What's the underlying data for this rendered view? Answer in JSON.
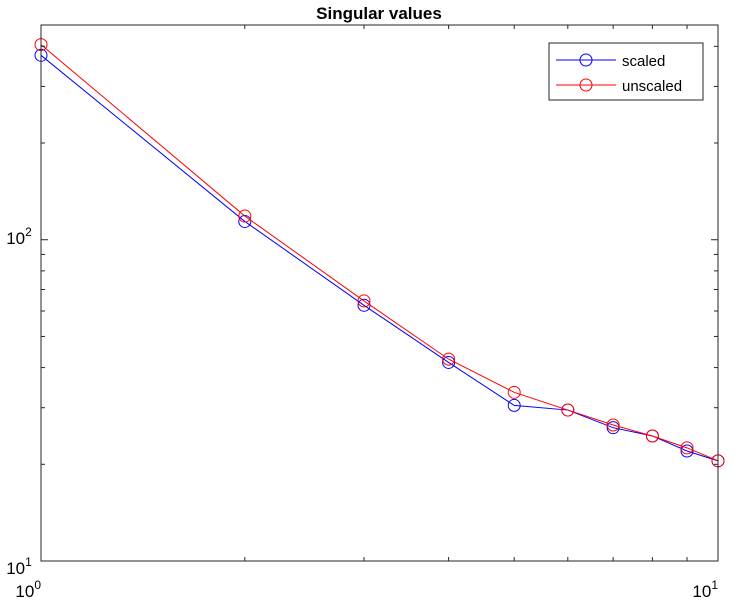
{
  "chart_data": {
    "type": "line",
    "title": "Singular values",
    "xlabel": "",
    "ylabel": "",
    "x_scale": "log",
    "y_scale": "log",
    "xlim": [
      1,
      10
    ],
    "ylim": [
      10,
      466
    ],
    "x_ticks": [
      {
        "value": 1,
        "base": "10",
        "exponent": "0"
      },
      {
        "value": 10,
        "base": "10",
        "exponent": "1"
      }
    ],
    "y_ticks": [
      {
        "value": 10,
        "base": "10",
        "exponent": "1"
      },
      {
        "value": 100,
        "base": "10",
        "exponent": "2"
      }
    ],
    "grid": false,
    "legend_position": "top-right",
    "x": [
      1,
      2,
      3,
      4,
      5,
      6,
      7,
      8,
      9,
      10
    ],
    "series": [
      {
        "name": "scaled",
        "color": "#0000ff",
        "marker": "circle",
        "values": [
          375,
          114,
          62.5,
          41.5,
          30.5,
          29.5,
          26,
          24.5,
          22,
          20.5
        ]
      },
      {
        "name": "unscaled",
        "color": "#ff0000",
        "marker": "circle",
        "values": [
          405,
          118.5,
          64.5,
          42.5,
          33.5,
          29.5,
          26.5,
          24.5,
          22.5,
          20.5
        ]
      }
    ]
  }
}
